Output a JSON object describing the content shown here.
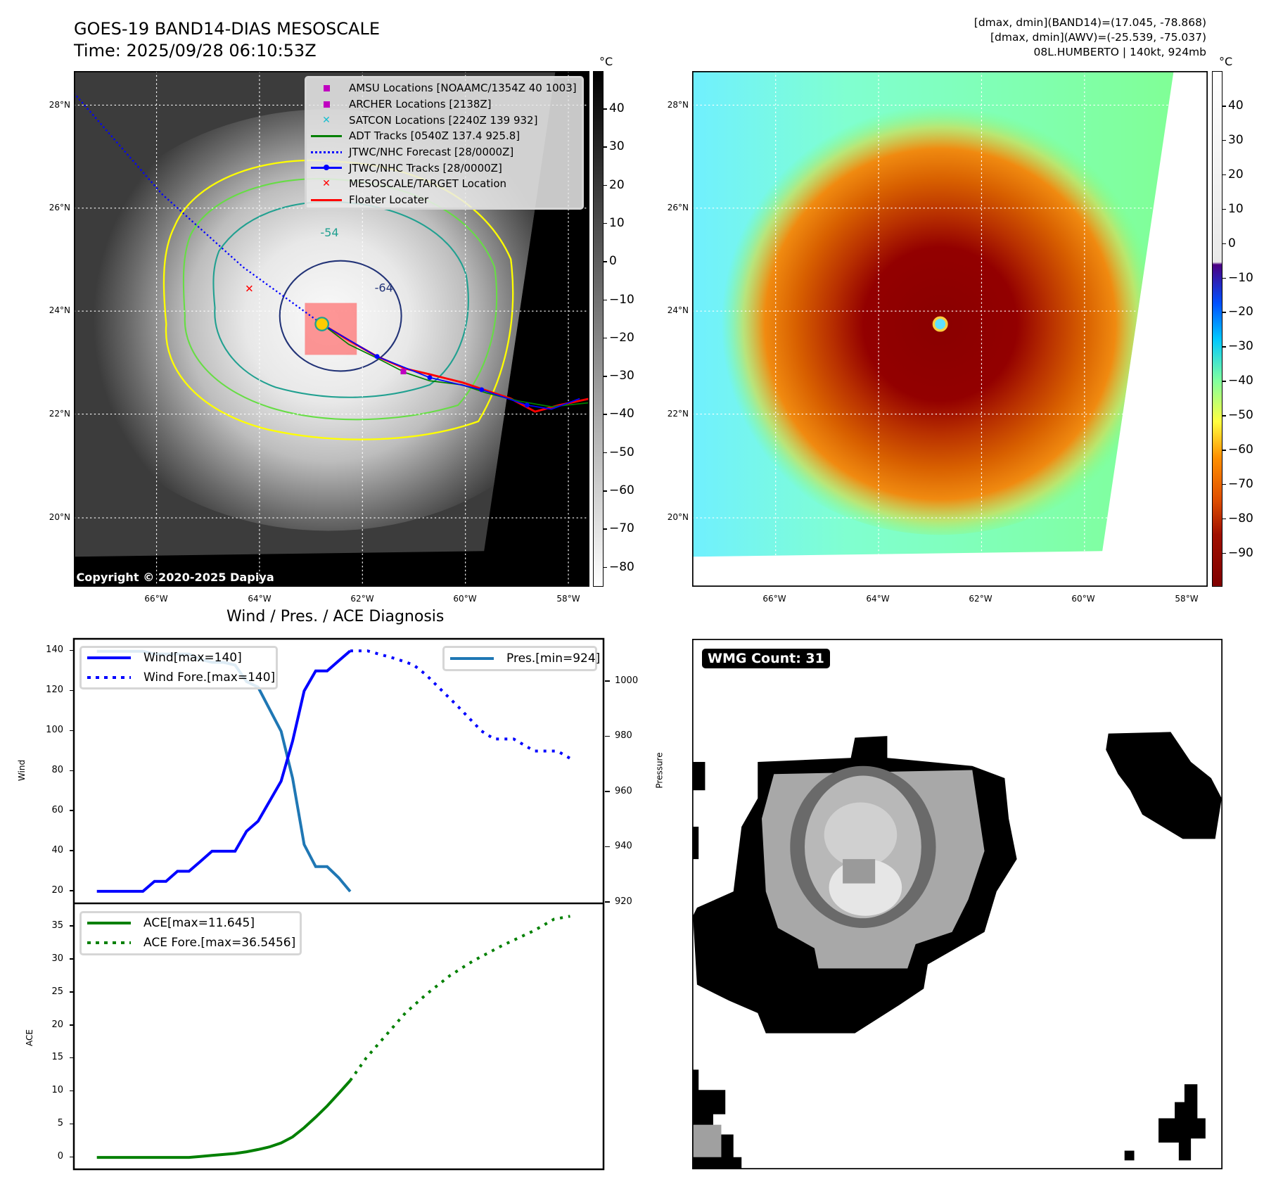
{
  "header": {
    "title_line1": "GOES-19 BAND14-DIAS MESOSCALE",
    "title_line2": "Time: 2025/09/28 06:10:53Z",
    "info_line1": "[dmax, dmin](BAND14)=(17.045, -78.868)",
    "info_line2": "[dmax, dmin](AWV)=(-25.539, -75.037)",
    "info_line3": "08L.HUMBERTO | 140kt, 924mb"
  },
  "maps": {
    "lat_labels": [
      "28°N",
      "26°N",
      "24°N",
      "22°N",
      "20°N"
    ],
    "lon_labels": [
      "66°W",
      "64°W",
      "62°W",
      "60°W",
      "58°W"
    ],
    "copyright": "Copyright © 2020-2025 Dapiya",
    "contour_labels": [
      "-54",
      "-64"
    ],
    "left_colorbar": {
      "unit": "°C",
      "ticks": [
        "40",
        "30",
        "20",
        "10",
        "0",
        "−10",
        "−20",
        "−30",
        "−40",
        "−50",
        "−60",
        "−70",
        "−80"
      ]
    },
    "right_colorbar": {
      "unit": "°C",
      "ticks": [
        "40",
        "30",
        "20",
        "10",
        "0",
        "−10",
        "−20",
        "−30",
        "−40",
        "−50",
        "−60",
        "−70",
        "−80",
        "−90"
      ]
    },
    "legend": [
      {
        "label": "AMSU Locations [NOAAMC/1354Z 40 1003]",
        "color": "#c000c0",
        "marker": "square"
      },
      {
        "label": "ARCHER Locations [2138Z]",
        "color": "#c000c0",
        "marker": "square"
      },
      {
        "label": "SATCON Locations [2240Z 139 932]",
        "color": "#17becf",
        "marker": "x"
      },
      {
        "label": "ADT Tracks [0540Z 137.4 925.8]",
        "color": "#008000",
        "marker": "line"
      },
      {
        "label": "JTWC/NHC Forecast [28/0000Z]",
        "color": "#0000ff",
        "marker": "dotted"
      },
      {
        "label": "JTWC/NHC Tracks [28/0000Z]",
        "color": "#0000ff",
        "marker": "line-dot"
      },
      {
        "label": "MESOSCALE/TARGET Location",
        "color": "#ff0000",
        "marker": "x"
      },
      {
        "label": "Floater Locater",
        "color": "#ff0000",
        "marker": "line"
      }
    ]
  },
  "diagnosis": {
    "title": "Wind / Pres. / ACE Diagnosis",
    "wind_label": "Wind",
    "pressure_label": "Pressure",
    "ace_label": "ACE",
    "legend_wind": "Wind[max=140]",
    "legend_wind_fore": "Wind Fore.[max=140]",
    "legend_pres": "Pres.[min=924]",
    "legend_ace": "ACE[max=11.645]",
    "legend_ace_fore": "ACE Fore.[max=36.5456]",
    "wind_ticks": [
      "140",
      "120",
      "100",
      "80",
      "60",
      "40",
      "20"
    ],
    "pres_ticks": [
      "1000",
      "980",
      "960",
      "940",
      "920"
    ],
    "ace_ticks": [
      "35",
      "30",
      "25",
      "20",
      "15",
      "10",
      "5",
      "0"
    ]
  },
  "wmg": {
    "label": "WMG Count: 31"
  },
  "colors": {
    "wind": "#0000ff",
    "pres": "#1f77b4",
    "ace": "#008000"
  },
  "chart_data": [
    {
      "type": "line",
      "title": "Wind / Pres. / ACE Diagnosis",
      "xlim": [
        -2,
        44
      ],
      "ylabel": "Wind",
      "ylim": [
        14,
        146
      ],
      "y2label": "Pressure",
      "y2lim": [
        919.7,
        1015.5
      ],
      "series": [
        {
          "name": "Wind[max=140]",
          "axis": "left",
          "style": "solid",
          "x": [
            0,
            1,
            2,
            3,
            4,
            5,
            6,
            7,
            8,
            9,
            10,
            11,
            12,
            13,
            14,
            15,
            16,
            17,
            18,
            19,
            20,
            21,
            22
          ],
          "values": [
            20,
            20,
            20,
            20,
            20,
            25,
            25,
            30,
            30,
            35,
            40,
            40,
            40,
            50,
            55,
            65,
            75,
            95,
            120,
            130,
            130,
            135,
            140
          ]
        },
        {
          "name": "Wind Fore.[max=140]",
          "axis": "left",
          "style": "dotted",
          "x": [
            22,
            23.5,
            26,
            27.5,
            28.6,
            30,
            31.4,
            33.4,
            34.5,
            36.2,
            38,
            40,
            41.2
          ],
          "values": [
            140,
            140,
            136,
            133,
            128,
            120,
            112,
            100,
            96,
            96,
            90,
            90,
            86
          ]
        },
        {
          "name": "Pres.[min=924]",
          "axis": "right",
          "style": "solid",
          "x": [
            0,
            1,
            2,
            3,
            4,
            5,
            6,
            7,
            8,
            9,
            10,
            11,
            12,
            13,
            14,
            15,
            16,
            17,
            18,
            19,
            20,
            21,
            22
          ],
          "values": [
            1011,
            1011,
            1011,
            1011,
            1011,
            1010,
            1010,
            1010,
            1010,
            1008,
            1007,
            1007,
            1006,
            1000,
            998,
            990,
            982,
            965,
            941,
            933,
            933,
            929,
            924
          ]
        }
      ]
    },
    {
      "type": "line",
      "xlim": [
        -2,
        44
      ],
      "ylabel": "ACE",
      "ylim": [
        -1.8,
        38.5
      ],
      "series": [
        {
          "name": "ACE[max=11.645]",
          "style": "solid",
          "x": [
            0,
            1,
            2,
            3,
            4,
            5,
            6,
            7,
            8,
            9,
            10,
            11,
            12,
            13,
            14,
            15,
            16,
            17,
            18,
            19,
            20,
            21,
            22
          ],
          "values": [
            0,
            0,
            0,
            0,
            0,
            0,
            0,
            0,
            0,
            0.15,
            0.3,
            0.45,
            0.6,
            0.85,
            1.2,
            1.6,
            2.2,
            3.1,
            4.5,
            6.1,
            7.8,
            9.7,
            11.645
          ]
        },
        {
          "name": "ACE Fore.[max=36.5456]",
          "style": "dotted",
          "x": [
            22,
            23.4,
            25.1,
            26.8,
            28.6,
            30.7,
            32.7,
            35.2,
            38,
            39.7,
            41.1
          ],
          "values": [
            11.645,
            15.1,
            18.5,
            21.9,
            24.7,
            27.6,
            29.8,
            32.1,
            34.4,
            36.1,
            36.5456
          ]
        }
      ]
    }
  ]
}
